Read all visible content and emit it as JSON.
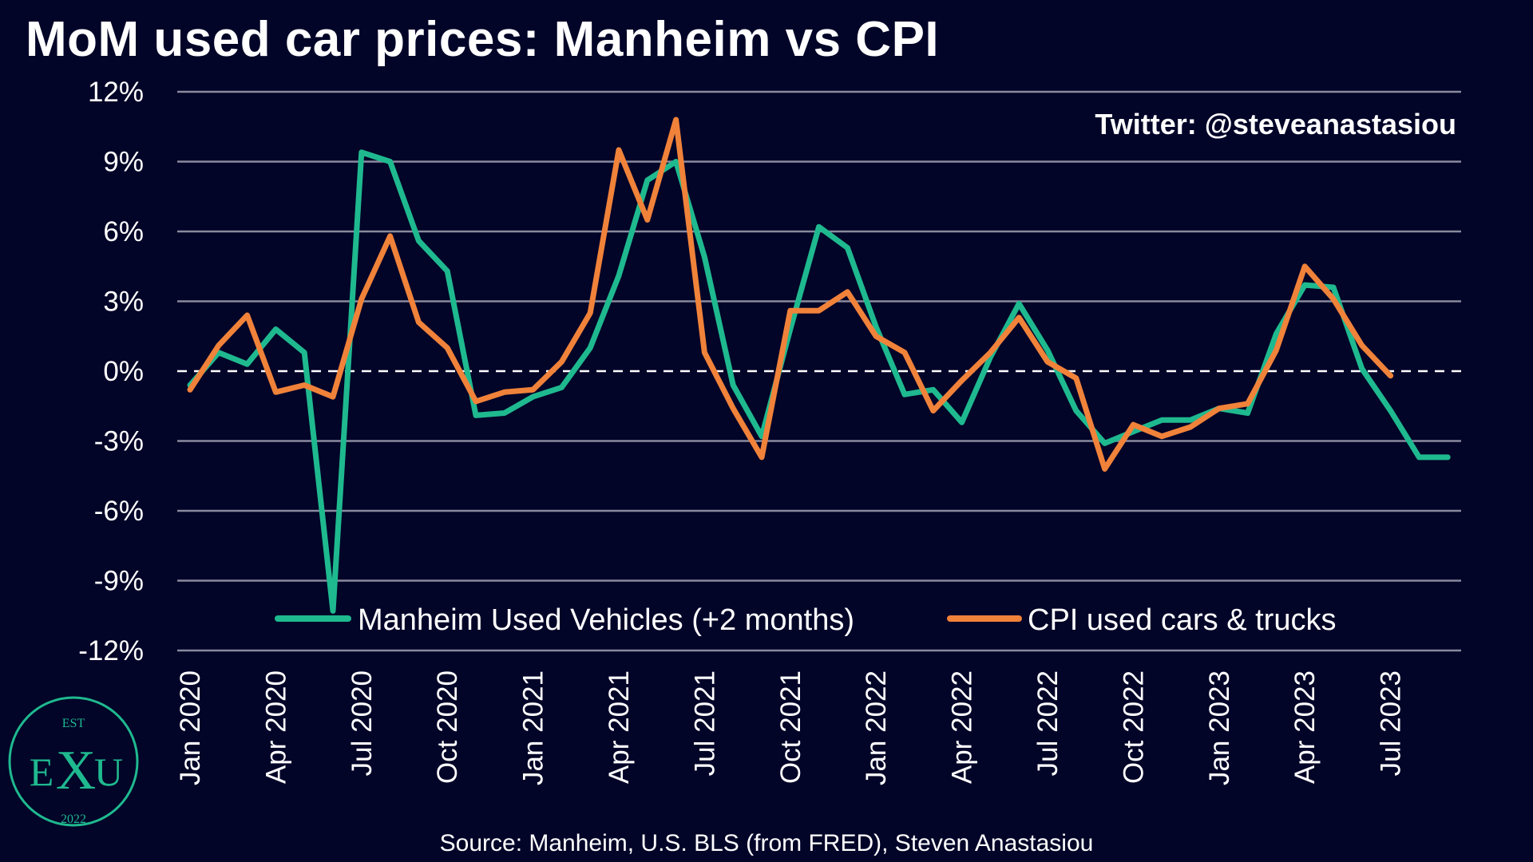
{
  "title": "MoM used car prices: Manheim vs CPI",
  "watermark": "Twitter: @steveanastasiou",
  "source": "Source: Manheim, U.S. BLS (from FRED), Steven Anastasiou",
  "logo": {
    "top_text": "EST",
    "left_letter": "E",
    "center_letter": "X",
    "right_letter": "U",
    "bottom_text": "2022",
    "color": "#1fb98f"
  },
  "colors": {
    "background": "#020428",
    "grid": "#8a8a9e",
    "manheim": "#1fb98f",
    "cpi": "#f0823a"
  },
  "chart_data": {
    "type": "line",
    "ylim": [
      -12,
      12
    ],
    "yticks": [
      12,
      9,
      6,
      3,
      0,
      -3,
      -6,
      -9,
      -12
    ],
    "ytick_labels": [
      "12%",
      "9%",
      "6%",
      "3%",
      "0%",
      "-3%",
      "-6%",
      "-9%",
      "-12%"
    ],
    "grid": true,
    "zero_line": "dashed",
    "legend_position": "bottom-center",
    "x_labels": [
      {
        "index": 0,
        "label": "Jan 2020"
      },
      {
        "index": 3,
        "label": "Apr 2020"
      },
      {
        "index": 6,
        "label": "Jul 2020"
      },
      {
        "index": 9,
        "label": "Oct 2020"
      },
      {
        "index": 12,
        "label": "Jan 2021"
      },
      {
        "index": 15,
        "label": "Apr 2021"
      },
      {
        "index": 18,
        "label": "Jul 2021"
      },
      {
        "index": 21,
        "label": "Oct 2021"
      },
      {
        "index": 24,
        "label": "Jan 2022"
      },
      {
        "index": 27,
        "label": "Apr 2022"
      },
      {
        "index": 30,
        "label": "Jul 2022"
      },
      {
        "index": 33,
        "label": "Oct 2022"
      },
      {
        "index": 36,
        "label": "Jan 2023"
      },
      {
        "index": 39,
        "label": "Apr 2023"
      },
      {
        "index": 42,
        "label": "Jul 2023"
      }
    ],
    "x_count": 45,
    "series": [
      {
        "name": "Manheim Used Vehicles (+2 months)",
        "color": "#1fb98f",
        "values": [
          -0.6,
          0.8,
          0.3,
          1.8,
          0.8,
          -10.3,
          9.4,
          9.0,
          5.6,
          4.3,
          -1.9,
          -1.8,
          -1.1,
          -0.7,
          1.0,
          4.1,
          8.2,
          9.0,
          4.9,
          -0.6,
          -2.8,
          1.8,
          6.2,
          5.3,
          1.9,
          -1.0,
          -0.8,
          -2.2,
          0.6,
          2.9,
          0.9,
          -1.7,
          -3.1,
          -2.6,
          -2.1,
          -2.1,
          -1.6,
          -1.8,
          1.6,
          3.7,
          3.6,
          0.1,
          -1.7,
          -3.7,
          -3.7
        ]
      },
      {
        "name": "CPI used cars & trucks",
        "color": "#f0823a",
        "values": [
          -0.8,
          1.1,
          2.4,
          -0.9,
          -0.6,
          -1.1,
          3.1,
          5.8,
          2.1,
          1.0,
          -1.3,
          -0.9,
          -0.8,
          0.4,
          2.5,
          9.5,
          6.5,
          10.8,
          0.8,
          -1.6,
          -3.7,
          2.6,
          2.6,
          3.4,
          1.5,
          0.8,
          -1.7,
          -0.4,
          0.8,
          2.3,
          0.4,
          -0.3,
          -4.2,
          -2.3,
          -2.8,
          -2.4,
          -1.6,
          -1.4,
          0.9,
          4.5,
          3.1,
          1.1,
          -0.2
        ]
      }
    ]
  }
}
